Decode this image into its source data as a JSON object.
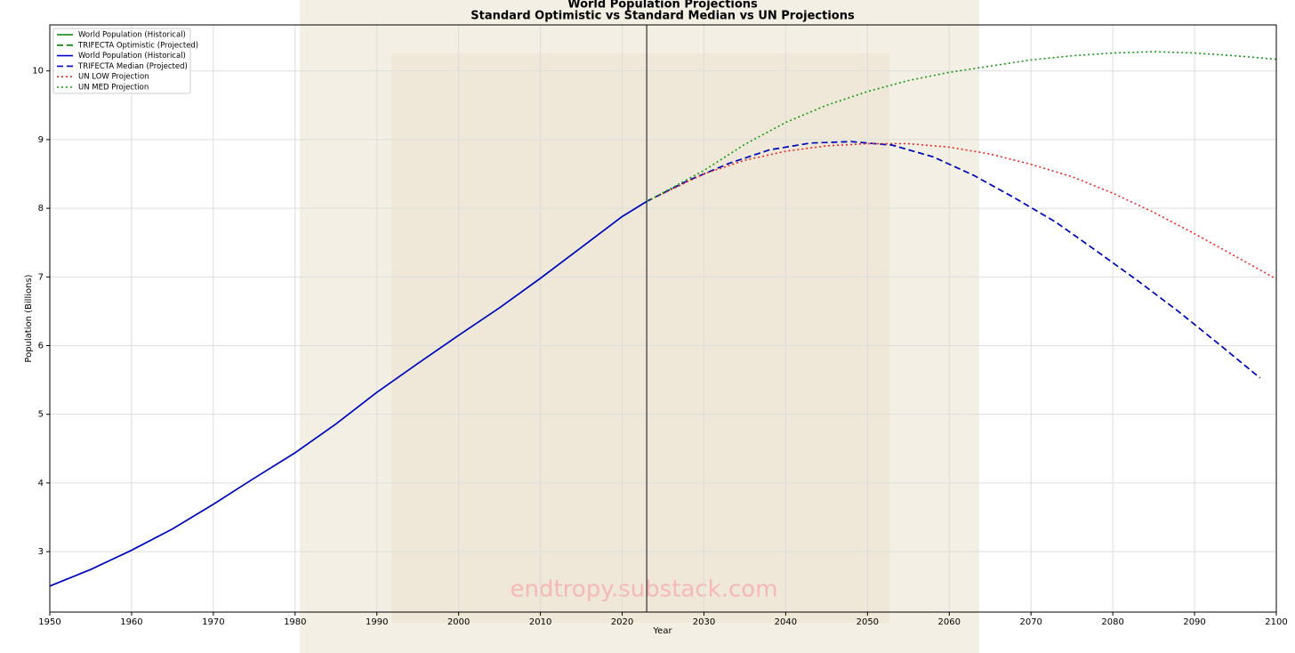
{
  "chart_data": {
    "type": "line",
    "title": "World Population Projections",
    "subtitle": "Standard Optimistic vs Standard Median vs UN Projections",
    "x_label": "Year",
    "y_label": "Population (Billions)",
    "annotation": "endtropy.substack.com",
    "xlim": [
      1950,
      2100
    ],
    "ylim": [
      2.12,
      10.67
    ],
    "xticks": [
      1950,
      1960,
      1970,
      1980,
      1990,
      2000,
      2010,
      2020,
      2030,
      2040,
      2050,
      2060,
      2070,
      2080,
      2090,
      2100
    ],
    "yticks": [
      3,
      4,
      5,
      6,
      7,
      8,
      9,
      10
    ],
    "vline": 2023,
    "grid": true,
    "legend": "upper-left",
    "series": [
      {
        "name": "World Population (Historical)",
        "color": "#008000",
        "style": "solid",
        "x": [
          1950,
          1955,
          1960,
          1965,
          1970,
          1975,
          1980,
          1985,
          1990,
          1995,
          2000,
          2005,
          2010,
          2015,
          2020,
          2023
        ],
        "values": [
          2.5,
          2.74,
          3.02,
          3.33,
          3.69,
          4.07,
          4.44,
          4.86,
          5.32,
          5.74,
          6.15,
          6.55,
          6.98,
          7.43,
          7.88,
          8.1
        ]
      },
      {
        "name": "TRIFECTA Optimistic (Projected)",
        "color": "#008000",
        "style": "dashed",
        "x": [
          2023,
          2028,
          2033,
          2038,
          2043,
          2048,
          2053,
          2058,
          2063,
          2068,
          2073,
          2078,
          2083,
          2088,
          2093,
          2098
        ],
        "values": [
          8.1,
          8.4,
          8.65,
          8.85,
          8.95,
          8.97,
          8.92,
          8.75,
          8.48,
          8.15,
          7.8,
          7.38,
          6.95,
          6.5,
          6.02,
          5.53
        ]
      },
      {
        "name": "World Population (Historical)",
        "color": "#0000cc",
        "style": "solid",
        "x": [
          1950,
          1955,
          1960,
          1965,
          1970,
          1975,
          1980,
          1985,
          1990,
          1995,
          2000,
          2005,
          2010,
          2015,
          2020,
          2023
        ],
        "values": [
          2.5,
          2.74,
          3.02,
          3.33,
          3.69,
          4.07,
          4.44,
          4.86,
          5.32,
          5.74,
          6.15,
          6.55,
          6.98,
          7.43,
          7.88,
          8.1
        ]
      },
      {
        "name": "TRIFECTA Median (Projected)",
        "color": "#0000cc",
        "style": "dashed",
        "x": [
          2023,
          2028,
          2033,
          2038,
          2043,
          2048,
          2053,
          2058,
          2063,
          2068,
          2073,
          2078,
          2083,
          2088,
          2093,
          2098
        ],
        "values": [
          8.1,
          8.4,
          8.65,
          8.85,
          8.95,
          8.97,
          8.92,
          8.75,
          8.48,
          8.15,
          7.8,
          7.38,
          6.95,
          6.5,
          6.02,
          5.53
        ]
      },
      {
        "name": "UN LOW Projection",
        "color": "#ee2222",
        "style": "dotted",
        "x": [
          2023,
          2030,
          2035,
          2040,
          2045,
          2050,
          2055,
          2060,
          2065,
          2070,
          2075,
          2080,
          2085,
          2090,
          2095,
          2100
        ],
        "values": [
          8.1,
          8.5,
          8.7,
          8.83,
          8.91,
          8.94,
          8.94,
          8.89,
          8.79,
          8.64,
          8.46,
          8.22,
          7.94,
          7.63,
          7.3,
          6.97
        ]
      },
      {
        "name": "UN MED Projection",
        "color": "#119911",
        "style": "dotted",
        "x": [
          2023,
          2030,
          2035,
          2040,
          2045,
          2050,
          2055,
          2060,
          2065,
          2070,
          2075,
          2080,
          2085,
          2090,
          2095,
          2100
        ],
        "values": [
          8.1,
          8.55,
          8.93,
          9.25,
          9.5,
          9.7,
          9.86,
          9.98,
          10.07,
          10.16,
          10.22,
          10.26,
          10.28,
          10.26,
          10.22,
          10.17
        ]
      }
    ]
  }
}
